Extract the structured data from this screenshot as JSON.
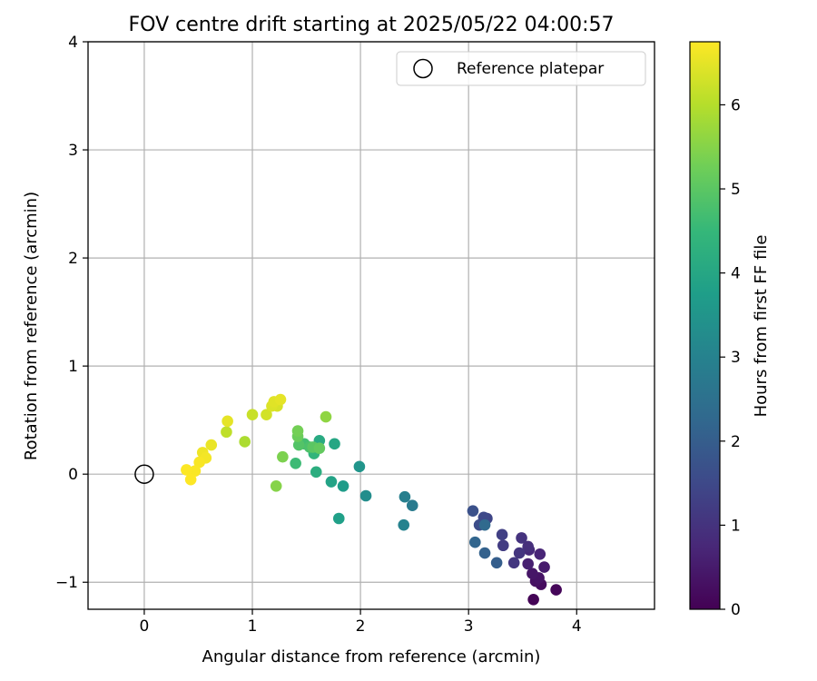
{
  "chart_data": {
    "type": "scatter",
    "title": "FOV centre drift starting at 2025/05/22 04:00:57",
    "xlabel": "Angular distance from reference (arcmin)",
    "ylabel": "Rotation from reference (arcmin)",
    "xlim": [
      -0.52,
      4.72
    ],
    "ylim": [
      -1.25,
      4.0
    ],
    "xticks": [
      0,
      1,
      2,
      3,
      4
    ],
    "yticks": [
      -1,
      0,
      1,
      2,
      3,
      4
    ],
    "xtick_labels": [
      "0",
      "1",
      "2",
      "3",
      "4"
    ],
    "ytick_labels": [
      "−1",
      "0",
      "1",
      "2",
      "3",
      "4"
    ],
    "grid": true,
    "legend": {
      "position": "top-right",
      "label": "Reference platepar"
    },
    "reference": {
      "x": 0,
      "y": 0
    },
    "colorbar": {
      "label": "Hours from first FF file",
      "min": 0,
      "max": 6.75,
      "ticks": [
        0,
        1,
        2,
        3,
        4,
        5,
        6
      ],
      "tick_labels": [
        "0",
        "1",
        "2",
        "3",
        "4",
        "5",
        "6"
      ],
      "colormap": "viridis",
      "colors": [
        "#440154",
        "#482878",
        "#3e4989",
        "#31688e",
        "#26828e",
        "#1f9e89",
        "#35b779",
        "#6ece58",
        "#b5de2b",
        "#fde725"
      ]
    },
    "points": [
      {
        "x": 3.6,
        "y": -1.16,
        "t": 0.05
      },
      {
        "x": 3.81,
        "y": -1.07,
        "t": 0.1
      },
      {
        "x": 3.67,
        "y": -1.02,
        "t": 0.2
      },
      {
        "x": 3.62,
        "y": -0.99,
        "t": 0.3
      },
      {
        "x": 3.65,
        "y": -0.96,
        "t": 0.35
      },
      {
        "x": 3.59,
        "y": -0.92,
        "t": 0.4
      },
      {
        "x": 3.7,
        "y": -0.86,
        "t": 0.5
      },
      {
        "x": 3.55,
        "y": -0.83,
        "t": 0.6
      },
      {
        "x": 3.66,
        "y": -0.74,
        "t": 0.7
      },
      {
        "x": 3.56,
        "y": -0.7,
        "t": 0.8
      },
      {
        "x": 3.55,
        "y": -0.67,
        "t": 0.9
      },
      {
        "x": 3.49,
        "y": -0.59,
        "t": 1.0
      },
      {
        "x": 3.47,
        "y": -0.73,
        "t": 1.05
      },
      {
        "x": 3.42,
        "y": -0.82,
        "t": 1.1
      },
      {
        "x": 3.32,
        "y": -0.66,
        "t": 1.2
      },
      {
        "x": 3.31,
        "y": -0.56,
        "t": 1.3
      },
      {
        "x": 3.17,
        "y": -0.41,
        "t": 1.4
      },
      {
        "x": 3.14,
        "y": -0.4,
        "t": 1.5
      },
      {
        "x": 3.1,
        "y": -0.47,
        "t": 1.6
      },
      {
        "x": 3.04,
        "y": -0.34,
        "t": 1.7
      },
      {
        "x": 3.26,
        "y": -0.82,
        "t": 2.0
      },
      {
        "x": 3.15,
        "y": -0.73,
        "t": 2.1
      },
      {
        "x": 3.06,
        "y": -0.63,
        "t": 2.2
      },
      {
        "x": 3.15,
        "y": -0.47,
        "t": 2.3
      },
      {
        "x": 2.48,
        "y": -0.29,
        "t": 2.8
      },
      {
        "x": 2.41,
        "y": -0.21,
        "t": 2.9
      },
      {
        "x": 2.4,
        "y": -0.47,
        "t": 3.0
      },
      {
        "x": 2.05,
        "y": -0.2,
        "t": 3.3
      },
      {
        "x": 1.99,
        "y": 0.07,
        "t": 3.5
      },
      {
        "x": 1.84,
        "y": -0.11,
        "t": 3.7
      },
      {
        "x": 1.8,
        "y": -0.41,
        "t": 3.8
      },
      {
        "x": 1.73,
        "y": -0.07,
        "t": 3.9
      },
      {
        "x": 1.76,
        "y": 0.28,
        "t": 4.0
      },
      {
        "x": 1.62,
        "y": 0.31,
        "t": 4.1
      },
      {
        "x": 1.59,
        "y": 0.02,
        "t": 4.2
      },
      {
        "x": 1.57,
        "y": 0.19,
        "t": 4.4
      },
      {
        "x": 1.4,
        "y": 0.1,
        "t": 4.6
      },
      {
        "x": 1.48,
        "y": 0.28,
        "t": 4.7
      },
      {
        "x": 1.53,
        "y": 0.25,
        "t": 4.8
      },
      {
        "x": 1.43,
        "y": 0.27,
        "t": 4.9
      },
      {
        "x": 1.56,
        "y": 0.25,
        "t": 5.0
      },
      {
        "x": 1.62,
        "y": 0.24,
        "t": 5.1
      },
      {
        "x": 1.42,
        "y": 0.35,
        "t": 5.2
      },
      {
        "x": 1.42,
        "y": 0.4,
        "t": 5.3
      },
      {
        "x": 1.28,
        "y": 0.16,
        "t": 5.4
      },
      {
        "x": 1.22,
        "y": -0.11,
        "t": 5.5
      },
      {
        "x": 1.68,
        "y": 0.53,
        "t": 5.6
      },
      {
        "x": 0.93,
        "y": 0.3,
        "t": 5.9
      },
      {
        "x": 0.76,
        "y": 0.39,
        "t": 6.1
      },
      {
        "x": 1.0,
        "y": 0.55,
        "t": 6.2
      },
      {
        "x": 1.13,
        "y": 0.55,
        "t": 6.3
      },
      {
        "x": 1.23,
        "y": 0.63,
        "t": 6.35
      },
      {
        "x": 1.18,
        "y": 0.63,
        "t": 6.4
      },
      {
        "x": 1.2,
        "y": 0.67,
        "t": 6.45
      },
      {
        "x": 1.26,
        "y": 0.69,
        "t": 6.5
      },
      {
        "x": 0.77,
        "y": 0.49,
        "t": 6.5
      },
      {
        "x": 0.62,
        "y": 0.27,
        "t": 6.55
      },
      {
        "x": 0.54,
        "y": 0.2,
        "t": 6.6
      },
      {
        "x": 0.57,
        "y": 0.15,
        "t": 6.65
      },
      {
        "x": 0.51,
        "y": 0.11,
        "t": 6.7
      },
      {
        "x": 0.47,
        "y": 0.03,
        "t": 6.72
      },
      {
        "x": 0.39,
        "y": 0.04,
        "t": 6.74
      },
      {
        "x": 0.43,
        "y": -0.05,
        "t": 6.75
      }
    ]
  }
}
